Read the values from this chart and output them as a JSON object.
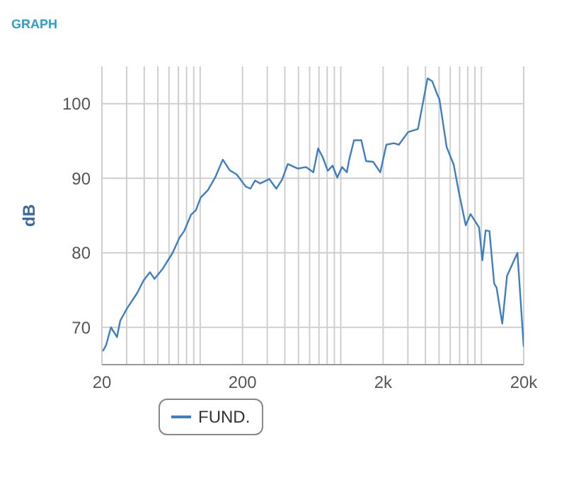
{
  "chart_data": {
    "type": "line",
    "title": "GRAPH",
    "ylabel": "dB",
    "log": "x",
    "grid": true,
    "legend": "bottom",
    "marker": "none",
    "xlim": [
      20,
      20000
    ],
    "xticks": [
      20,
      {
        "value": 30,
        "label": null
      },
      {
        "value": 40,
        "label": null
      },
      {
        "value": 50,
        "label": null
      },
      {
        "value": 60,
        "label": null
      },
      {
        "value": 70,
        "label": null
      },
      {
        "value": 80,
        "label": null
      },
      {
        "value": 90,
        "label": null
      },
      {
        "value": 100,
        "label": null
      },
      200,
      {
        "value": 300,
        "label": null
      },
      {
        "value": 400,
        "label": null
      },
      {
        "value": 500,
        "label": null
      },
      {
        "value": 600,
        "label": null
      },
      {
        "value": 700,
        "label": null
      },
      {
        "value": 800,
        "label": null
      },
      {
        "value": 900,
        "label": null
      },
      {
        "value": 1000,
        "label": null
      },
      {
        "value": 2000,
        "label": "2k"
      },
      {
        "value": 3000,
        "label": null
      },
      {
        "value": 4000,
        "label": null
      },
      {
        "value": 5000,
        "label": null
      },
      {
        "value": 6000,
        "label": null
      },
      {
        "value": 7000,
        "label": null
      },
      {
        "value": 8000,
        "label": null
      },
      {
        "value": 9000,
        "label": null
      },
      {
        "value": 10000,
        "label": null
      },
      {
        "value": 20000,
        "label": "20k"
      }
    ],
    "ylim": [
      65,
      105
    ],
    "yticks": [
      70,
      80,
      90,
      100
    ],
    "series": [
      {
        "name": "FUND.",
        "color": "#3d7fc0",
        "x": [
          20.3,
          21.4,
          23.2,
          25.6,
          27,
          30.3,
          35.6,
          39.6,
          43.9,
          47.3,
          54.3,
          63.7,
          71.1,
          76.9,
          86,
          93.1,
          100.8,
          113.4,
          127.8,
          144.8,
          161.8,
          182.1,
          210.6,
          227.6,
          246,
          267,
          310,
          348,
          382,
          420,
          495,
          567,
          638,
          690,
          745,
          808,
          874,
          944,
          1020,
          1104,
          1148,
          1242,
          1400,
          1514,
          1699,
          1910,
          2110,
          2386,
          2590,
          3013,
          3539,
          4140,
          4475,
          4840,
          5030,
          5660,
          6360,
          6870,
          7740,
          8370,
          9630,
          10160,
          10720,
          11410,
          12330,
          12830,
          14080,
          15220,
          18050,
          20000
        ],
        "values": [
          66.8,
          67.6,
          70.0,
          68.7,
          70.9,
          72.6,
          74.6,
          76.3,
          77.4,
          76.5,
          77.9,
          80.0,
          82.0,
          82.9,
          85.1,
          85.7,
          87.4,
          88.4,
          90.1,
          92.5,
          91.1,
          90.5,
          88.9,
          88.6,
          89.7,
          89.3,
          89.9,
          88.6,
          89.8,
          91.9,
          91.3,
          91.5,
          90.8,
          94.0,
          92.8,
          91.0,
          91.7,
          90.1,
          91.5,
          90.8,
          92.5,
          95.1,
          95.1,
          92.3,
          92.2,
          90.8,
          94.5,
          94.7,
          94.5,
          96.2,
          96.6,
          103.4,
          103.0,
          101.3,
          100.6,
          94.2,
          91.8,
          88.4,
          83.7,
          85.2,
          83.4,
          79.0,
          83.0,
          82.9,
          75.9,
          75.3,
          70.5,
          76.9,
          80.0,
          67.4
        ]
      }
    ]
  }
}
